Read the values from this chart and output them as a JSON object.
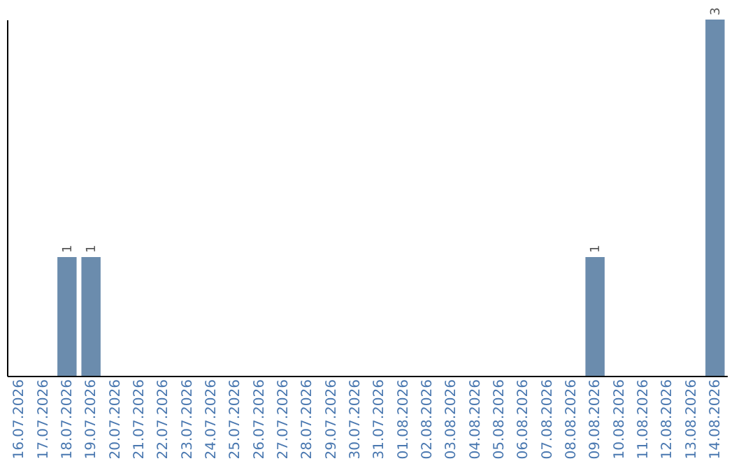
{
  "chart_data": {
    "type": "bar",
    "categories": [
      "16.07.2026",
      "17.07.2026",
      "18.07.2026",
      "19.07.2026",
      "20.07.2026",
      "21.07.2026",
      "22.07.2026",
      "23.07.2026",
      "24.07.2026",
      "25.07.2026",
      "26.07.2026",
      "27.07.2026",
      "28.07.2026",
      "29.07.2026",
      "30.07.2026",
      "31.07.2026",
      "01.08.2026",
      "02.08.2026",
      "03.08.2026",
      "04.08.2026",
      "05.08.2026",
      "06.08.2026",
      "07.08.2026",
      "08.08.2026",
      "09.08.2026",
      "10.08.2026",
      "11.08.2026",
      "12.08.2026",
      "13.08.2026",
      "14.08.2026"
    ],
    "values": [
      0,
      0,
      1,
      1,
      0,
      0,
      0,
      0,
      0,
      0,
      0,
      0,
      0,
      0,
      0,
      0,
      0,
      0,
      0,
      0,
      0,
      0,
      0,
      0,
      1,
      0,
      0,
      0,
      0,
      3
    ],
    "color": "#6b8cad",
    "ylim": [
      0,
      3
    ],
    "value_labels": [
      null,
      null,
      "1",
      "1",
      null,
      null,
      null,
      null,
      null,
      null,
      null,
      null,
      null,
      null,
      null,
      null,
      null,
      null,
      null,
      null,
      null,
      null,
      null,
      null,
      "1",
      null,
      null,
      null,
      null,
      "3"
    ],
    "tick_labels": "x",
    "grid": false
  }
}
